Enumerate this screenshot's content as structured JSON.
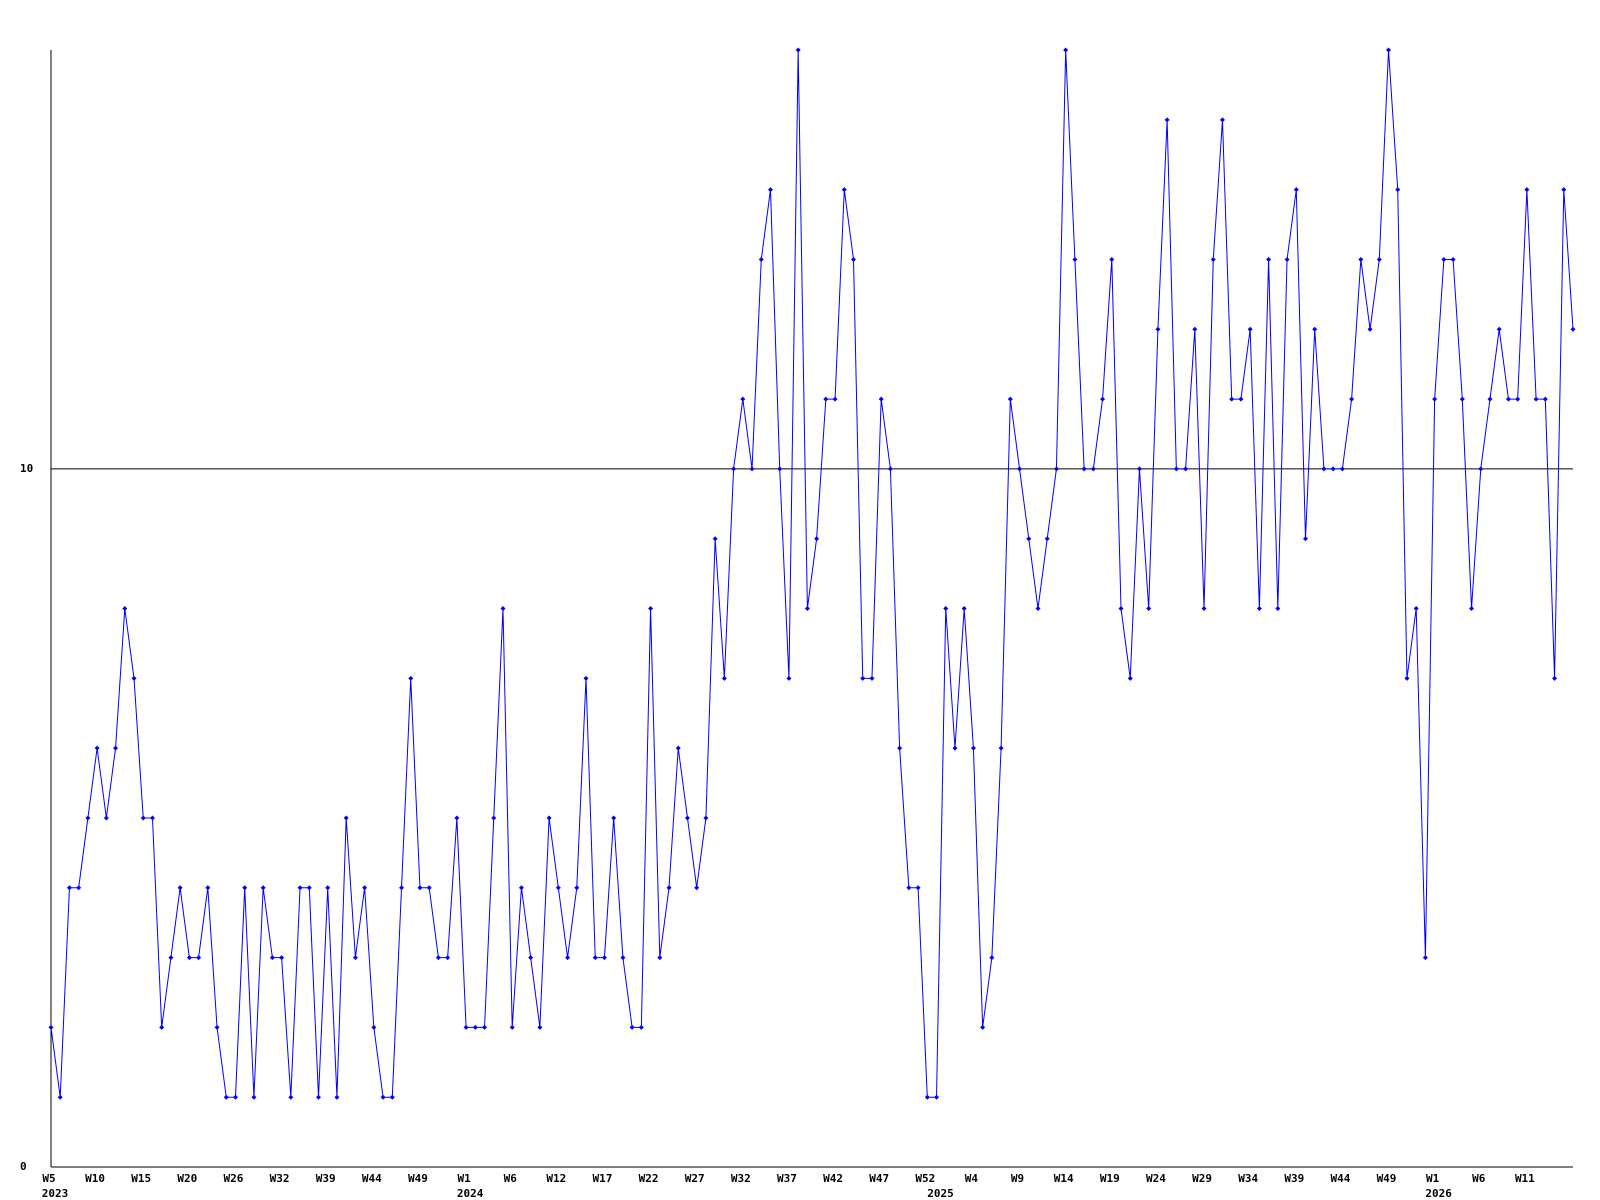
{
  "chart_data": {
    "type": "line",
    "categories": [
      "W5",
      null,
      null,
      null,
      null,
      "W10",
      null,
      null,
      null,
      null,
      "W15",
      null,
      null,
      null,
      null,
      "W20",
      null,
      null,
      null,
      null,
      "W26",
      null,
      null,
      null,
      null,
      "W32",
      null,
      null,
      null,
      null,
      "W39",
      null,
      null,
      null,
      null,
      "W44",
      null,
      null,
      null,
      null,
      "W49",
      null,
      null,
      null,
      null,
      "W1",
      null,
      null,
      null,
      null,
      "W6",
      null,
      null,
      null,
      null,
      "W12",
      null,
      null,
      null,
      null,
      "W17",
      null,
      null,
      null,
      null,
      "W22",
      null,
      null,
      null,
      null,
      "W27",
      null,
      null,
      null,
      null,
      "W32",
      null,
      null,
      null,
      null,
      "W37",
      null,
      null,
      null,
      null,
      "W42",
      null,
      null,
      null,
      null,
      "W47",
      null,
      null,
      null,
      null,
      "W52",
      null,
      null,
      null,
      null,
      "W4",
      null,
      null,
      null,
      null,
      "W9",
      null,
      null,
      null,
      null,
      "W14",
      null,
      null,
      null,
      null,
      "W19",
      null,
      null,
      null,
      null,
      "W24",
      null,
      null,
      null,
      null,
      "W29",
      null,
      null,
      null,
      null,
      "W34",
      null,
      null,
      null,
      null,
      "W39",
      null,
      null,
      null,
      null,
      "W44",
      null,
      null,
      null,
      null,
      "W49",
      null,
      null,
      null,
      null,
      "W1",
      null,
      null,
      null,
      null,
      "W6",
      null,
      null,
      null,
      null,
      "W11",
      null,
      null,
      null,
      null,
      null
    ],
    "year_labels": [
      "2023",
      null,
      null,
      null,
      null,
      null,
      null,
      null,
      null,
      null,
      null,
      null,
      null,
      null,
      null,
      null,
      null,
      null,
      null,
      null,
      null,
      null,
      null,
      null,
      null,
      null,
      null,
      null,
      null,
      null,
      null,
      null,
      null,
      null,
      null,
      null,
      null,
      null,
      null,
      null,
      null,
      null,
      null,
      null,
      null,
      "2024",
      null,
      null,
      null,
      null,
      null,
      null,
      null,
      null,
      null,
      null,
      null,
      null,
      null,
      null,
      null,
      null,
      null,
      null,
      null,
      null,
      null,
      null,
      null,
      null,
      null,
      null,
      null,
      null,
      null,
      null,
      null,
      null,
      null,
      null,
      null,
      null,
      null,
      null,
      null,
      null,
      null,
      null,
      null,
      null,
      null,
      null,
      null,
      null,
      null,
      null,
      "2025",
      null,
      null,
      null,
      null,
      null,
      null,
      null,
      null,
      null,
      null,
      null,
      null,
      null,
      null,
      null,
      null,
      null,
      null,
      null,
      null,
      null,
      null,
      null,
      null,
      null,
      null,
      null,
      null,
      null,
      null,
      null,
      null,
      null,
      null,
      null,
      null,
      null,
      null,
      null,
      null,
      null,
      null,
      null,
      null,
      null,
      null,
      null,
      null,
      null,
      null,
      null,
      null,
      null,
      "2026",
      null,
      null,
      null,
      null,
      null,
      null,
      null,
      null,
      null,
      null,
      null,
      null,
      null,
      null,
      null
    ],
    "series": [
      {
        "color": "#0000ff",
        "values": [
          2,
          1,
          4,
          4,
          5,
          6,
          5,
          6,
          8,
          7,
          5,
          5,
          2,
          3,
          4,
          3,
          3,
          4,
          2,
          1,
          1,
          4,
          1,
          4,
          3,
          3,
          1,
          4,
          4,
          1,
          4,
          1,
          5,
          3,
          4,
          2,
          1,
          1,
          4,
          7,
          4,
          4,
          3,
          3,
          5,
          2,
          2,
          2,
          5,
          8,
          2,
          4,
          3,
          2,
          5,
          4,
          3,
          4,
          7,
          3,
          3,
          5,
          3,
          2,
          2,
          8,
          3,
          4,
          6,
          5,
          4,
          5,
          9,
          7,
          10,
          11,
          10,
          13,
          14,
          10,
          7,
          16,
          8,
          9,
          11,
          11,
          14,
          13,
          7,
          7,
          11,
          10,
          6,
          4,
          4,
          1,
          1,
          8,
          6,
          8,
          6,
          2,
          3,
          6,
          11,
          10,
          9,
          8,
          9,
          10,
          16,
          13,
          10,
          10,
          11,
          13,
          8,
          7,
          10,
          8,
          12,
          15,
          10,
          10,
          12,
          8,
          13,
          15,
          11,
          11,
          12,
          8,
          13,
          8,
          13,
          14,
          9,
          12,
          10,
          10,
          10,
          11,
          13,
          12,
          13,
          16,
          14,
          7,
          8,
          3,
          11,
          13,
          13,
          11,
          8,
          10,
          11,
          12,
          11,
          11,
          14,
          11,
          11,
          7,
          14,
          12
        ]
      }
    ],
    "ylim": [
      0,
      16
    ],
    "yticks": [
      0,
      10
    ],
    "grid": true
  }
}
